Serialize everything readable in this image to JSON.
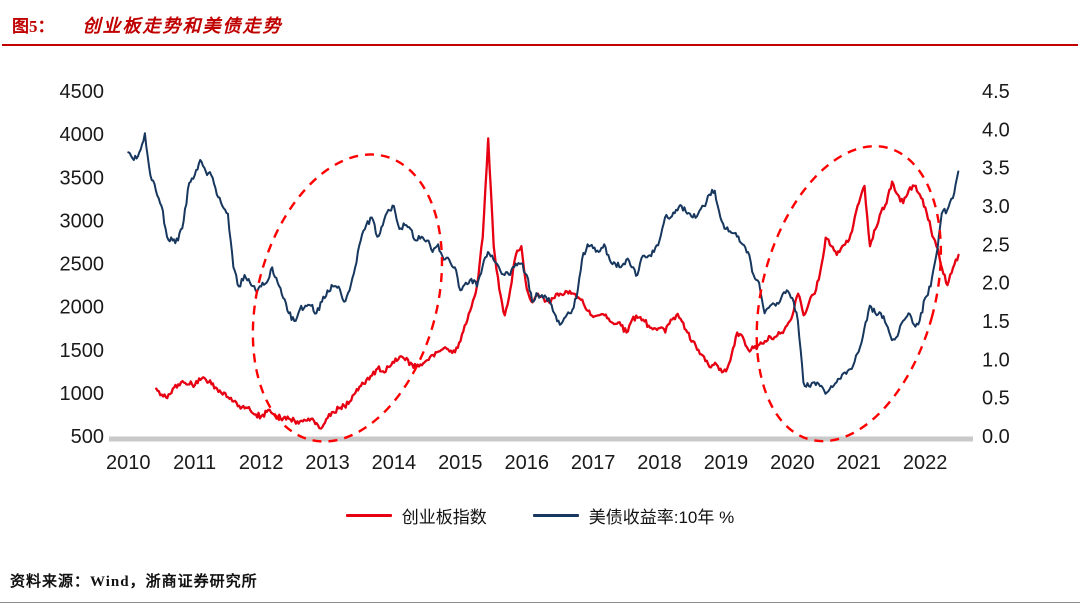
{
  "header": {
    "figure_label": "图5：",
    "title": "创业板走势和美债走势",
    "accent_color": "#c00000"
  },
  "chart_data": {
    "type": "line",
    "title": "创业板走势和美债走势",
    "x_range": [
      2009.8,
      2022.6
    ],
    "x_ticks": [
      2010,
      2011,
      2012,
      2013,
      2014,
      2015,
      2016,
      2017,
      2018,
      2019,
      2020,
      2021,
      2022
    ],
    "left_axis": {
      "label": "",
      "min": 500,
      "max": 4500,
      "ticks": [
        4500,
        4000,
        3500,
        3000,
        2500,
        2000,
        1500,
        1000,
        500
      ]
    },
    "right_axis": {
      "label": "",
      "min": 0.0,
      "max": 4.5,
      "ticks": [
        4.5,
        4.0,
        3.5,
        3.0,
        2.5,
        2.0,
        1.5,
        1.0,
        0.5,
        0.0
      ]
    },
    "grid": false,
    "legend_position": "bottom",
    "series": [
      {
        "name": "创业板指数",
        "axis": "left",
        "color": "#e60012",
        "x_start": 2010.42,
        "x_step": 0.08333,
        "values": [
          1050,
          980,
          940,
          1050,
          1100,
          1120,
          1100,
          1090,
          1150,
          1150,
          1100,
          1050,
          980,
          950,
          900,
          850,
          820,
          800,
          750,
          730,
          780,
          760,
          720,
          710,
          700,
          680,
          670,
          680,
          700,
          650,
          600,
          710,
          780,
          820,
          850,
          900,
          1000,
          1080,
          1150,
          1200,
          1280,
          1250,
          1300,
          1350,
          1420,
          1380,
          1350,
          1300,
          1320,
          1380,
          1440,
          1480,
          1520,
          1480,
          1470,
          1600,
          1800,
          2000,
          2250,
          2800,
          3950,
          2700,
          2200,
          1900,
          2200,
          2600,
          2700,
          2200,
          2050,
          2150,
          2100,
          2050,
          2100,
          2150,
          2180,
          2150,
          2100,
          2080,
          1950,
          1880,
          1900,
          1900,
          1830,
          1800,
          1780,
          1700,
          1850,
          1870,
          1850,
          1780,
          1750,
          1750,
          1700,
          1850,
          1900,
          1830,
          1700,
          1600,
          1500,
          1420,
          1300,
          1350,
          1280,
          1250,
          1450,
          1700,
          1650,
          1500,
          1520,
          1560,
          1600,
          1650,
          1650,
          1700,
          1780,
          1900,
          2150,
          1900,
          2050,
          2150,
          2400,
          2800,
          2700,
          2600,
          2700,
          2750,
          2950,
          3200,
          3400,
          2700,
          2900,
          3100,
          3200,
          3450,
          3300,
          3200,
          3350,
          3400,
          3300,
          3150,
          2900,
          2700,
          2450,
          2250,
          2450,
          2600
        ]
      },
      {
        "name": "美债收益率:10年 %",
        "axis": "right",
        "color": "#17375e",
        "x_start": 2010.0,
        "x_step": 0.08333,
        "values": [
          3.7,
          3.6,
          3.7,
          3.95,
          3.4,
          3.2,
          3.0,
          2.6,
          2.55,
          2.55,
          2.8,
          3.3,
          3.4,
          3.6,
          3.45,
          3.4,
          3.15,
          3.0,
          2.9,
          2.2,
          1.95,
          2.1,
          2.0,
          1.9,
          1.95,
          2.0,
          2.2,
          2.0,
          1.8,
          1.6,
          1.5,
          1.65,
          1.7,
          1.7,
          1.6,
          1.75,
          1.9,
          1.95,
          1.95,
          1.75,
          1.9,
          2.2,
          2.55,
          2.75,
          2.85,
          2.6,
          2.75,
          2.95,
          3.0,
          2.7,
          2.75,
          2.7,
          2.55,
          2.6,
          2.55,
          2.4,
          2.5,
          2.3,
          2.3,
          2.2,
          1.9,
          2.0,
          2.05,
          1.95,
          2.2,
          2.4,
          2.3,
          2.2,
          2.1,
          2.1,
          2.25,
          2.25,
          2.1,
          1.75,
          1.85,
          1.8,
          1.8,
          1.6,
          1.45,
          1.55,
          1.6,
          1.8,
          2.3,
          2.5,
          2.45,
          2.4,
          2.5,
          2.3,
          2.25,
          2.2,
          2.3,
          2.2,
          2.1,
          2.35,
          2.35,
          2.4,
          2.55,
          2.85,
          2.85,
          2.95,
          3.0,
          2.9,
          2.85,
          2.9,
          3.0,
          3.15,
          3.2,
          2.85,
          2.7,
          2.65,
          2.6,
          2.5,
          2.4,
          2.1,
          2.0,
          1.6,
          1.7,
          1.7,
          1.8,
          1.9,
          1.8,
          1.5,
          0.7,
          0.65,
          0.7,
          0.65,
          0.55,
          0.65,
          0.7,
          0.8,
          0.85,
          0.92,
          1.1,
          1.4,
          1.7,
          1.6,
          1.6,
          1.45,
          1.25,
          1.3,
          1.5,
          1.6,
          1.45,
          1.5,
          1.8,
          1.95,
          2.35,
          2.9,
          2.95,
          3.1,
          3.45
        ]
      }
    ],
    "annotations": {
      "ellipse_color": "#ff0000",
      "ellipses": [
        {
          "cx_year": 2013.3,
          "cy_left_value": 2100,
          "rx_years": 1.35,
          "ry_left_value": 1700,
          "rotation_deg": 15
        },
        {
          "cx_year": 2020.85,
          "cy_left_value": 2150,
          "rx_years": 1.3,
          "ry_left_value": 1750,
          "rotation_deg": 15
        }
      ]
    }
  },
  "legend": {
    "items": [
      {
        "label": "创业板指数",
        "color": "#e60012"
      },
      {
        "label": "美债收益率:10年 %",
        "color": "#17375e"
      }
    ]
  },
  "footer": {
    "source": "资料来源：Wind，浙商证券研究所"
  }
}
